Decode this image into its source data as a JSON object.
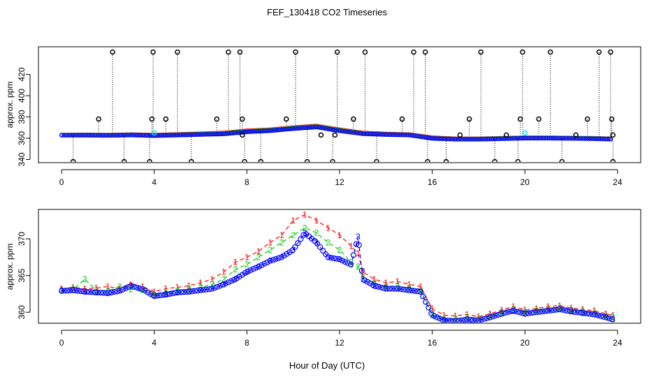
{
  "title": "FEF_130418  CO2 Timeseries",
  "xlabel": "Hour of Day (UTC)",
  "colors": {
    "s1": "#ff0000",
    "s2": "#00cd00",
    "s3": "#0000ff",
    "cyan": "#00e5ee",
    "axis": "#000000"
  },
  "chart_data": [
    {
      "id": "top",
      "type": "scatter",
      "ylabel": "approx. ppm",
      "xlim": [
        -1,
        25
      ],
      "ylim": [
        337,
        446
      ],
      "xticks": [
        0,
        4,
        8,
        12,
        16,
        20,
        24
      ],
      "xtick_labels": [
        "0",
        "4",
        "8",
        "12",
        "16",
        "20",
        "24"
      ],
      "yticks": [
        340,
        360,
        380,
        400,
        420
      ],
      "ytick_labels": [
        "340",
        "360",
        "380",
        "400",
        "420"
      ],
      "baseline_series": [
        {
          "name": "1",
          "color": "#ff0000",
          "x": [
            0,
            1,
            2,
            3,
            4,
            5,
            6,
            7,
            8,
            9,
            10,
            11,
            12,
            13,
            14,
            15,
            16,
            17,
            18,
            19,
            20,
            21,
            22,
            23,
            23.8
          ],
          "y": [
            363,
            363.2,
            363,
            363.4,
            363,
            363.6,
            364.2,
            365,
            367,
            368,
            370,
            371.5,
            368,
            365,
            364,
            363.5,
            360.5,
            359.5,
            359.5,
            360,
            360.5,
            360.5,
            360.2,
            360,
            359.5
          ]
        },
        {
          "name": "2",
          "color": "#00cd00",
          "x": [
            0,
            1,
            2,
            3,
            4,
            5,
            6,
            7,
            8,
            9,
            10,
            11,
            12,
            13,
            14,
            15,
            16,
            17,
            18,
            19,
            20,
            21,
            22,
            23,
            23.8
          ],
          "y": [
            363,
            363,
            362.8,
            363.2,
            362.6,
            363.2,
            363.8,
            364.5,
            366.5,
            367.5,
            369.5,
            371,
            367.5,
            364.5,
            363.6,
            363.2,
            360,
            359.2,
            359.3,
            359.8,
            360.2,
            360.3,
            360,
            359.8,
            359.3
          ]
        },
        {
          "name": "3",
          "color": "#0000ff",
          "x": [
            0,
            1,
            2,
            3,
            4,
            5,
            6,
            7,
            8,
            9,
            10,
            11,
            12,
            13,
            14,
            15,
            16,
            17,
            18,
            19,
            20,
            21,
            22,
            23,
            23.8
          ],
          "y": [
            362.8,
            362.8,
            362.6,
            363,
            362.4,
            362.9,
            363.5,
            364,
            366,
            367,
            369,
            370.5,
            367,
            364.2,
            363.4,
            363,
            359.8,
            359,
            359,
            359.5,
            360,
            360,
            359.8,
            359.5,
            359
          ]
        }
      ],
      "spikes": [
        {
          "x": 0.5,
          "y": 338
        },
        {
          "x": 1.6,
          "y": 378
        },
        {
          "x": 2.2,
          "y": 441
        },
        {
          "x": 2.7,
          "y": 338
        },
        {
          "x": 3.8,
          "y": 338
        },
        {
          "x": 3.9,
          "y": 378
        },
        {
          "x": 3.95,
          "y": 441
        },
        {
          "x": 4.5,
          "y": 378
        },
        {
          "x": 5.0,
          "y": 441
        },
        {
          "x": 5.6,
          "y": 338
        },
        {
          "x": 6.7,
          "y": 378
        },
        {
          "x": 7.2,
          "y": 441
        },
        {
          "x": 7.7,
          "y": 441
        },
        {
          "x": 7.8,
          "y": 378
        },
        {
          "x": 7.9,
          "y": 338
        },
        {
          "x": 8.6,
          "y": 338
        },
        {
          "x": 9.7,
          "y": 378
        },
        {
          "x": 10.1,
          "y": 441
        },
        {
          "x": 10.6,
          "y": 338
        },
        {
          "x": 11.7,
          "y": 338
        },
        {
          "x": 11.9,
          "y": 441
        },
        {
          "x": 12.6,
          "y": 378
        },
        {
          "x": 13.1,
          "y": 441
        },
        {
          "x": 13.6,
          "y": 338
        },
        {
          "x": 14.7,
          "y": 378
        },
        {
          "x": 15.2,
          "y": 441
        },
        {
          "x": 15.7,
          "y": 441
        },
        {
          "x": 15.8,
          "y": 338
        },
        {
          "x": 16.6,
          "y": 338
        },
        {
          "x": 17.6,
          "y": 378
        },
        {
          "x": 18.1,
          "y": 441
        },
        {
          "x": 18.7,
          "y": 338
        },
        {
          "x": 19.7,
          "y": 338
        },
        {
          "x": 19.8,
          "y": 378
        },
        {
          "x": 19.9,
          "y": 441
        },
        {
          "x": 20.6,
          "y": 378
        },
        {
          "x": 21.1,
          "y": 441
        },
        {
          "x": 21.6,
          "y": 338
        },
        {
          "x": 22.7,
          "y": 378
        },
        {
          "x": 23.2,
          "y": 441
        },
        {
          "x": 23.7,
          "y": 441
        },
        {
          "x": 23.75,
          "y": 378
        },
        {
          "x": 23.8,
          "y": 338
        }
      ],
      "outlier_points": [
        {
          "x": 7.8,
          "y": 363
        },
        {
          "x": 11.2,
          "y": 363
        },
        {
          "x": 11.8,
          "y": 363
        },
        {
          "x": 17.2,
          "y": 363
        },
        {
          "x": 19.2,
          "y": 363
        },
        {
          "x": 22.2,
          "y": 363
        },
        {
          "x": 23.8,
          "y": 363
        }
      ],
      "cyan_points": [
        {
          "x": 4.0,
          "y": 365
        },
        {
          "x": 20.0,
          "y": 365
        }
      ]
    },
    {
      "id": "bottom",
      "type": "scatter",
      "ylabel": "approx. ppm",
      "xlim": [
        -1,
        25
      ],
      "ylim": [
        358.5,
        374
      ],
      "xticks": [
        0,
        4,
        8,
        12,
        16,
        20,
        24
      ],
      "xtick_labels": [
        "0",
        "4",
        "8",
        "12",
        "16",
        "20",
        "24"
      ],
      "yticks": [
        360,
        365,
        370
      ],
      "ytick_labels": [
        "360",
        "365",
        "370"
      ],
      "series": [
        {
          "name": "1",
          "label": "1",
          "color": "#ff0000",
          "x": [
            0,
            0.5,
            1,
            1.5,
            2,
            2.5,
            3,
            3.5,
            4,
            4.5,
            5,
            5.5,
            6,
            6.5,
            7,
            7.5,
            8,
            8.5,
            9,
            9.5,
            10,
            10.5,
            11,
            11.5,
            12,
            12.5,
            12.8,
            13,
            13.5,
            14,
            14.5,
            15,
            15.5,
            16,
            16.5,
            17,
            17.5,
            18,
            18.5,
            19,
            19.5,
            20,
            20.5,
            21,
            21.5,
            22,
            22.5,
            23,
            23.5,
            23.8
          ],
          "y": [
            363.2,
            363.4,
            363.2,
            363.3,
            363.5,
            363.2,
            363.8,
            363.5,
            362.8,
            363.2,
            363.4,
            363.6,
            364,
            364.5,
            365.5,
            366.8,
            367.5,
            368.3,
            369.5,
            370.5,
            372.5,
            373.3,
            372.5,
            371.5,
            370.5,
            369,
            368,
            365.5,
            364.5,
            364,
            364.2,
            363.8,
            363.5,
            360.5,
            359.6,
            359.5,
            359.7,
            359.4,
            359.8,
            360.3,
            360.8,
            360.3,
            360.5,
            360.8,
            360.9,
            360.6,
            360.4,
            360.2,
            359.8,
            359.6
          ]
        },
        {
          "name": "2",
          "label": "2",
          "color": "#00cd00",
          "x": [
            0,
            0.5,
            1,
            1.5,
            2,
            2.5,
            3,
            3.5,
            4,
            4.5,
            5,
            5.5,
            6,
            6.5,
            7,
            7.5,
            8,
            8.5,
            9,
            9.5,
            10,
            10.5,
            11,
            11.5,
            12,
            12.5,
            12.8,
            13,
            13.5,
            14,
            14.5,
            15,
            15.5,
            16,
            16.5,
            17,
            17.5,
            18,
            18.5,
            19,
            19.5,
            20,
            20.5,
            21,
            21.5,
            22,
            22.5,
            23,
            23.5,
            23.8
          ],
          "y": [
            363,
            363.1,
            364.5,
            363,
            362.9,
            363.5,
            363.1,
            363,
            362.4,
            362.6,
            362.9,
            363.1,
            363.4,
            363.8,
            364.5,
            365.8,
            366.5,
            367.5,
            368.5,
            369.5,
            370.5,
            371.5,
            370.8,
            369.5,
            368.5,
            366.8,
            366.2,
            364.8,
            364,
            363.5,
            363.6,
            363.3,
            363,
            359.8,
            359,
            359.1,
            359.3,
            359.1,
            359.5,
            360,
            360.4,
            360,
            360.2,
            360.4,
            360.6,
            360.3,
            360.1,
            359.9,
            359.5,
            359.3
          ]
        },
        {
          "name": "3",
          "label": "3",
          "color": "#0000ff",
          "x": [
            0,
            0.5,
            1,
            1.5,
            2,
            2.5,
            3,
            3.5,
            4,
            4.5,
            5,
            5.5,
            6,
            6.5,
            7,
            7.5,
            8,
            8.5,
            9,
            9.5,
            10,
            10.5,
            11,
            11.5,
            12,
            12.5,
            12.8,
            13,
            13.5,
            14,
            14.5,
            15,
            15.5,
            16,
            16.5,
            17,
            17.5,
            18,
            18.5,
            19,
            19.5,
            20,
            20.5,
            21,
            21.5,
            22,
            22.5,
            23,
            23.5,
            23.8
          ],
          "y": [
            362.9,
            363,
            362.8,
            362.7,
            362.6,
            362.9,
            363.6,
            363.1,
            362.2,
            362.4,
            362.7,
            362.8,
            363,
            363.2,
            363.8,
            364.5,
            365.5,
            366.2,
            367,
            367.5,
            368.5,
            370.8,
            369.5,
            367.5,
            367.2,
            366.5,
            370.3,
            364.5,
            363.6,
            363.2,
            363.2,
            363,
            362.8,
            359.6,
            358.9,
            358.8,
            359,
            358.9,
            359.3,
            359.8,
            360.2,
            359.8,
            360,
            360.2,
            360.4,
            360.1,
            359.9,
            359.7,
            359.3,
            359
          ]
        }
      ]
    }
  ]
}
